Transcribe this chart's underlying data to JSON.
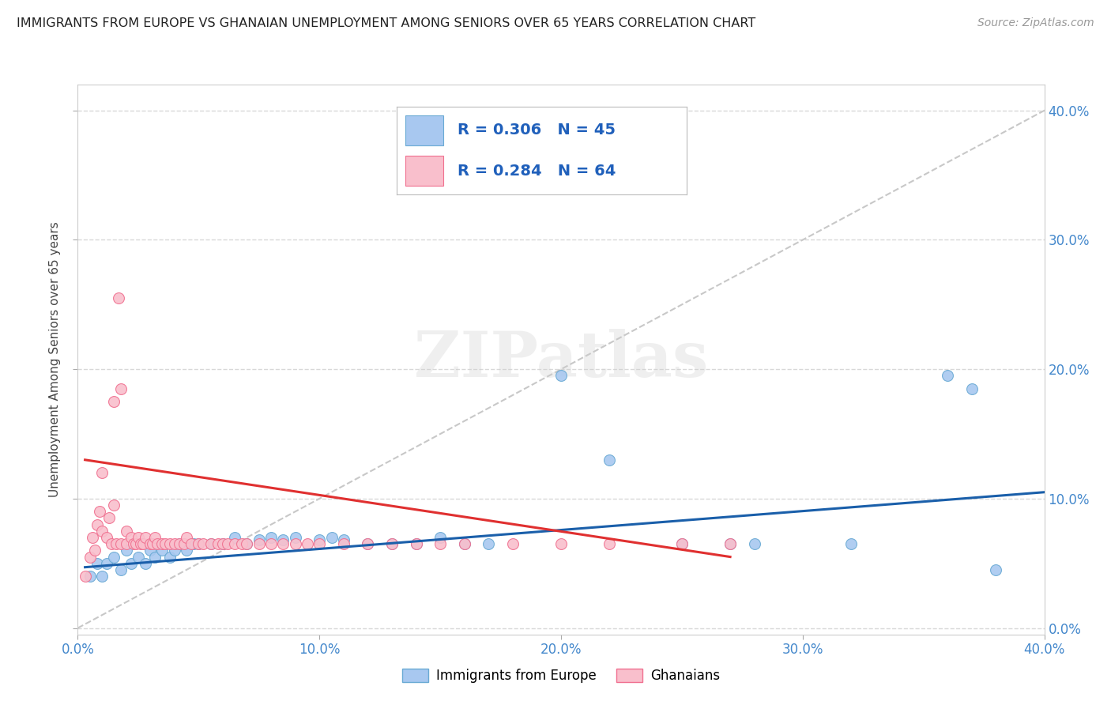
{
  "title": "IMMIGRANTS FROM EUROPE VS GHANAIAN UNEMPLOYMENT AMONG SENIORS OVER 65 YEARS CORRELATION CHART",
  "source": "Source: ZipAtlas.com",
  "ylabel": "Unemployment Among Seniors over 65 years",
  "xlim": [
    0,
    0.4
  ],
  "ylim": [
    -0.005,
    0.42
  ],
  "xtick_labels": [
    "0.0%",
    "",
    "10.0%",
    "",
    "20.0%",
    "",
    "30.0%",
    "",
    "40.0%"
  ],
  "xtick_values": [
    0.0,
    0.05,
    0.1,
    0.15,
    0.2,
    0.25,
    0.3,
    0.35,
    0.4
  ],
  "ytick_labels": [
    "0.0%",
    "10.0%",
    "20.0%",
    "30.0%",
    "40.0%"
  ],
  "ytick_values": [
    0.0,
    0.1,
    0.2,
    0.3,
    0.4
  ],
  "blue_R": 0.306,
  "blue_N": 45,
  "pink_R": 0.284,
  "pink_N": 64,
  "blue_color": "#a8c8f0",
  "blue_edge": "#6aaad4",
  "pink_color": "#f9bfcc",
  "pink_edge": "#f07090",
  "trend_blue_color": "#1a5faa",
  "trend_pink_color": "#e03030",
  "trend_diagonal_color": "#c8c8c8",
  "watermark": "ZIPatlas",
  "legend_text_color": "#2060bb",
  "blue_scatter": [
    [
      0.005,
      0.04
    ],
    [
      0.008,
      0.05
    ],
    [
      0.01,
      0.04
    ],
    [
      0.012,
      0.05
    ],
    [
      0.015,
      0.055
    ],
    [
      0.018,
      0.045
    ],
    [
      0.02,
      0.06
    ],
    [
      0.022,
      0.05
    ],
    [
      0.025,
      0.055
    ],
    [
      0.028,
      0.05
    ],
    [
      0.03,
      0.06
    ],
    [
      0.032,
      0.055
    ],
    [
      0.035,
      0.06
    ],
    [
      0.038,
      0.055
    ],
    [
      0.04,
      0.06
    ],
    [
      0.042,
      0.065
    ],
    [
      0.045,
      0.06
    ],
    [
      0.048,
      0.065
    ],
    [
      0.05,
      0.065
    ],
    [
      0.055,
      0.065
    ],
    [
      0.06,
      0.065
    ],
    [
      0.065,
      0.07
    ],
    [
      0.07,
      0.065
    ],
    [
      0.075,
      0.068
    ],
    [
      0.08,
      0.07
    ],
    [
      0.085,
      0.068
    ],
    [
      0.09,
      0.07
    ],
    [
      0.1,
      0.068
    ],
    [
      0.105,
      0.07
    ],
    [
      0.11,
      0.068
    ],
    [
      0.12,
      0.065
    ],
    [
      0.13,
      0.065
    ],
    [
      0.14,
      0.065
    ],
    [
      0.15,
      0.07
    ],
    [
      0.16,
      0.065
    ],
    [
      0.17,
      0.065
    ],
    [
      0.2,
      0.195
    ],
    [
      0.22,
      0.13
    ],
    [
      0.25,
      0.065
    ],
    [
      0.27,
      0.065
    ],
    [
      0.28,
      0.065
    ],
    [
      0.32,
      0.065
    ],
    [
      0.36,
      0.195
    ],
    [
      0.37,
      0.185
    ],
    [
      0.38,
      0.045
    ]
  ],
  "pink_scatter": [
    [
      0.003,
      0.04
    ],
    [
      0.005,
      0.055
    ],
    [
      0.006,
      0.07
    ],
    [
      0.007,
      0.06
    ],
    [
      0.008,
      0.08
    ],
    [
      0.009,
      0.09
    ],
    [
      0.01,
      0.075
    ],
    [
      0.01,
      0.12
    ],
    [
      0.012,
      0.07
    ],
    [
      0.013,
      0.085
    ],
    [
      0.014,
      0.065
    ],
    [
      0.015,
      0.095
    ],
    [
      0.015,
      0.175
    ],
    [
      0.016,
      0.065
    ],
    [
      0.017,
      0.255
    ],
    [
      0.018,
      0.065
    ],
    [
      0.018,
      0.185
    ],
    [
      0.02,
      0.065
    ],
    [
      0.02,
      0.075
    ],
    [
      0.022,
      0.07
    ],
    [
      0.023,
      0.065
    ],
    [
      0.024,
      0.065
    ],
    [
      0.025,
      0.07
    ],
    [
      0.026,
      0.065
    ],
    [
      0.027,
      0.065
    ],
    [
      0.028,
      0.07
    ],
    [
      0.03,
      0.065
    ],
    [
      0.031,
      0.065
    ],
    [
      0.032,
      0.07
    ],
    [
      0.033,
      0.065
    ],
    [
      0.035,
      0.065
    ],
    [
      0.036,
      0.065
    ],
    [
      0.038,
      0.065
    ],
    [
      0.04,
      0.065
    ],
    [
      0.042,
      0.065
    ],
    [
      0.044,
      0.065
    ],
    [
      0.045,
      0.07
    ],
    [
      0.047,
      0.065
    ],
    [
      0.05,
      0.065
    ],
    [
      0.052,
      0.065
    ],
    [
      0.055,
      0.065
    ],
    [
      0.058,
      0.065
    ],
    [
      0.06,
      0.065
    ],
    [
      0.062,
      0.065
    ],
    [
      0.065,
      0.065
    ],
    [
      0.068,
      0.065
    ],
    [
      0.07,
      0.065
    ],
    [
      0.075,
      0.065
    ],
    [
      0.08,
      0.065
    ],
    [
      0.085,
      0.065
    ],
    [
      0.09,
      0.065
    ],
    [
      0.095,
      0.065
    ],
    [
      0.1,
      0.065
    ],
    [
      0.11,
      0.065
    ],
    [
      0.12,
      0.065
    ],
    [
      0.13,
      0.065
    ],
    [
      0.14,
      0.065
    ],
    [
      0.15,
      0.065
    ],
    [
      0.16,
      0.065
    ],
    [
      0.18,
      0.065
    ],
    [
      0.2,
      0.065
    ],
    [
      0.22,
      0.065
    ],
    [
      0.25,
      0.065
    ],
    [
      0.27,
      0.065
    ]
  ],
  "blue_trend_x": [
    0.003,
    0.4
  ],
  "blue_trend_y": [
    0.047,
    0.105
  ],
  "pink_trend_x": [
    0.003,
    0.27
  ],
  "pink_trend_y": [
    0.13,
    0.055
  ]
}
